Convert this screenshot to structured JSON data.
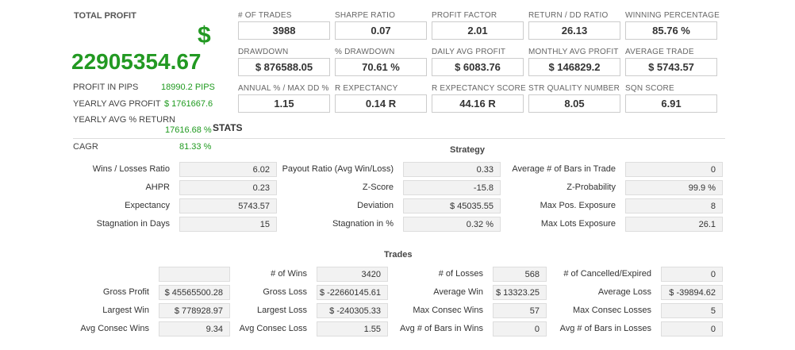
{
  "summary": {
    "total_profit_label": "TOTAL PROFIT",
    "currency_symbol": "$",
    "total_profit_value": "22905354.67",
    "rows": [
      {
        "label": "PROFIT IN PIPS",
        "value": "18990.2 PIPS"
      },
      {
        "label": "YEARLY AVG PROFIT",
        "value": "$ 1761667.6"
      },
      {
        "label": "YEARLY AVG % RETURN",
        "value": "17616.68 %"
      },
      {
        "label": "CAGR",
        "value": "81.33 %"
      }
    ]
  },
  "metrics": [
    {
      "label": "# OF TRADES",
      "value": "3988"
    },
    {
      "label": "SHARPE RATIO",
      "value": "0.07"
    },
    {
      "label": "PROFIT FACTOR",
      "value": "2.01"
    },
    {
      "label": "RETURN / DD RATIO",
      "value": "26.13"
    },
    {
      "label": "WINNING PERCENTAGE",
      "value": "85.76 %"
    },
    {
      "label": "DRAWDOWN",
      "value": "$ 876588.05"
    },
    {
      "label": "% DRAWDOWN",
      "value": "70.61 %"
    },
    {
      "label": "DAILY AVG PROFIT",
      "value": "$ 6083.76"
    },
    {
      "label": "MONTHLY AVG PROFIT",
      "value": "$ 146829.2"
    },
    {
      "label": "AVERAGE TRADE",
      "value": "$ 5743.57"
    },
    {
      "label": "ANNUAL % / MAX DD %",
      "value": "1.15"
    },
    {
      "label": "R EXPECTANCY",
      "value": "0.14 R"
    },
    {
      "label": "R EXPECTANCY SCORE",
      "value": "44.16 R"
    },
    {
      "label": "STR QUALITY NUMBER",
      "value": "8.05"
    },
    {
      "label": "SQN SCORE",
      "value": "6.91"
    }
  ],
  "stats_title": "STATS",
  "strategy": {
    "title": "Strategy",
    "rows": [
      [
        {
          "label": "Wins / Losses Ratio",
          "value": "6.02"
        },
        {
          "label": "Payout Ratio (Avg Win/Loss)",
          "value": "0.33"
        },
        {
          "label": "Average # of Bars in Trade",
          "value": "0"
        }
      ],
      [
        {
          "label": "AHPR",
          "value": "0.23"
        },
        {
          "label": "Z-Score",
          "value": "-15.8"
        },
        {
          "label": "Z-Probability",
          "value": "99.9 %"
        }
      ],
      [
        {
          "label": "Expectancy",
          "value": "5743.57"
        },
        {
          "label": "Deviation",
          "value": "$ 45035.55"
        },
        {
          "label": "Max Pos. Exposure",
          "value": "8"
        }
      ],
      [
        {
          "label": "Stagnation in Days",
          "value": "15"
        },
        {
          "label": "Stagnation in %",
          "value": "0.32 %"
        },
        {
          "label": "Max Lots Exposure",
          "value": "26.1"
        }
      ]
    ]
  },
  "trades": {
    "title": "Trades",
    "rows": [
      [
        {
          "label": "",
          "value": ""
        },
        {
          "label": "# of Wins",
          "value": "3420"
        },
        {
          "label": "# of Losses",
          "value": "568"
        },
        {
          "label": "# of Cancelled/Expired",
          "value": "0"
        }
      ],
      [
        {
          "label": "Gross Profit",
          "value": "$ 45565500.28"
        },
        {
          "label": "Gross Loss",
          "value": "$ -22660145.61"
        },
        {
          "label": "Average Win",
          "value": "$ 13323.25"
        },
        {
          "label": "Average Loss",
          "value": "$ -39894.62"
        }
      ],
      [
        {
          "label": "Largest Win",
          "value": "$ 778928.97"
        },
        {
          "label": "Largest Loss",
          "value": "$ -240305.33"
        },
        {
          "label": "Max Consec Wins",
          "value": "57"
        },
        {
          "label": "Max Consec Losses",
          "value": "5"
        }
      ],
      [
        {
          "label": "Avg Consec Wins",
          "value": "9.34"
        },
        {
          "label": "Avg Consec Loss",
          "value": "1.55"
        },
        {
          "label": "Avg # of Bars in Wins",
          "value": "0"
        },
        {
          "label": "Avg # of Bars in Losses",
          "value": "0"
        }
      ]
    ]
  }
}
